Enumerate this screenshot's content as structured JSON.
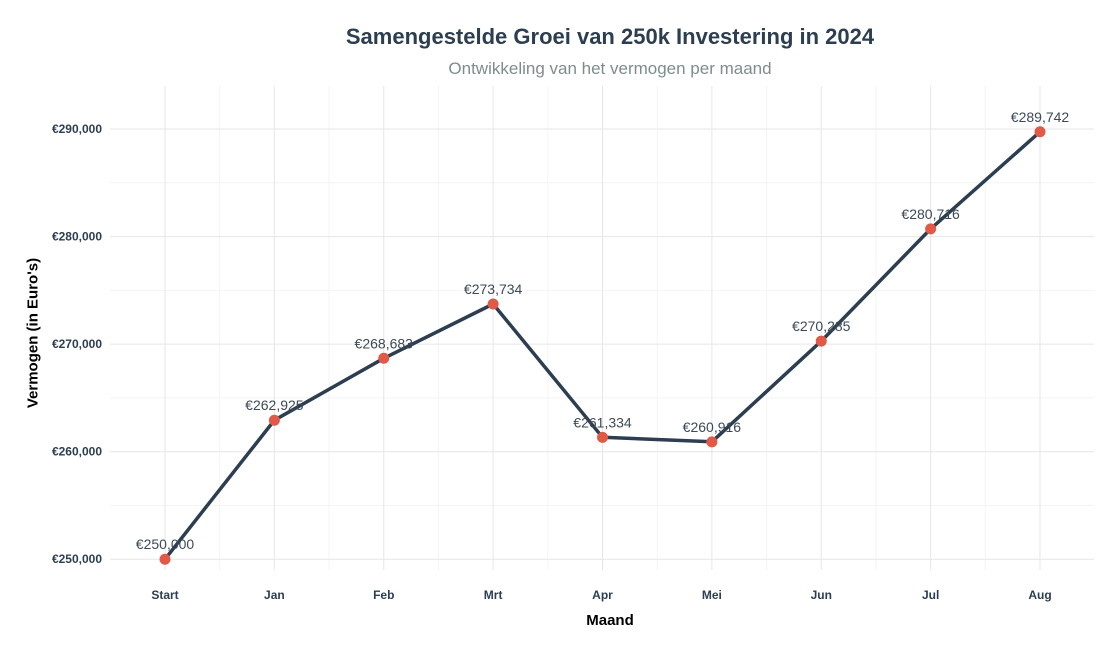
{
  "chart_data": {
    "type": "line",
    "title": "Samengestelde Groei van 250k Investering in 2024",
    "subtitle": "Ontwikkeling van het vermogen per maand",
    "xlabel": "Maand",
    "ylabel": "Vermogen (in Euro's)",
    "categories": [
      "Start",
      "Jan",
      "Feb",
      "Mrt",
      "Apr",
      "Mei",
      "Jun",
      "Jul",
      "Aug"
    ],
    "values": [
      250000,
      262925,
      268683,
      273734,
      261334,
      260916,
      270285,
      280716,
      289742
    ],
    "data_labels": [
      "€250,000",
      "€262,925",
      "€268,683",
      "€273,734",
      "€261,334",
      "€260,916",
      "€270,285",
      "€280,716",
      "€289,742"
    ],
    "y_ticks": [
      250000,
      260000,
      270000,
      280000,
      290000
    ],
    "y_tick_labels": [
      "€250,000",
      "€260,000",
      "€270,000",
      "€280,000",
      "€290,000"
    ],
    "ylim": [
      249000,
      294000
    ],
    "grid": true,
    "line_color": "#2c3e50",
    "marker_color": "#e05a47"
  }
}
